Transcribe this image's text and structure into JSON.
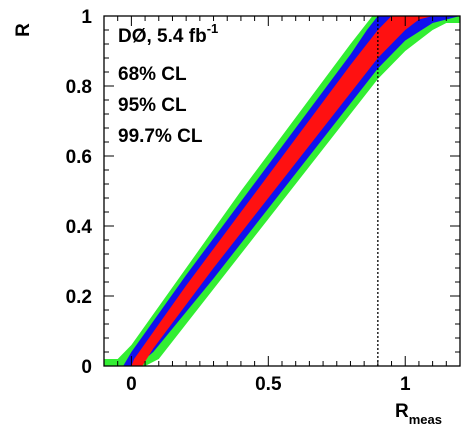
{
  "chart_data": {
    "type": "area",
    "title": "",
    "experiment_label": "DØ, 5.4 fb",
    "experiment_label_superscript": "-1",
    "xlabel_main": "R",
    "xlabel_sub": "meas",
    "ylabel": "R",
    "xlim": [
      -0.1,
      1.2
    ],
    "ylim": [
      0,
      1
    ],
    "x_ticks": [
      {
        "value": 0,
        "label": "0"
      },
      {
        "value": 0.5,
        "label": "0.5"
      },
      {
        "value": 1,
        "label": "1"
      }
    ],
    "y_ticks": [
      {
        "value": 0,
        "label": "0"
      },
      {
        "value": 0.2,
        "label": "0.2"
      },
      {
        "value": 0.4,
        "label": "0.4"
      },
      {
        "value": 0.6,
        "label": "0.6"
      },
      {
        "value": 0.8,
        "label": "0.8"
      },
      {
        "value": 1,
        "label": "1"
      }
    ],
    "measured_value_line": {
      "x": 0.9,
      "style": "dotted"
    },
    "series": [
      {
        "name": "99.7% CL",
        "color": "#33ee33",
        "lower": [
          [
            -0.1,
            0.0
          ],
          [
            -0.02,
            0.0
          ],
          [
            0.05,
            0.0
          ],
          [
            0.1,
            0.02
          ],
          [
            0.3,
            0.22
          ],
          [
            0.5,
            0.42
          ],
          [
            0.7,
            0.62
          ],
          [
            0.9,
            0.82
          ],
          [
            1.0,
            0.9
          ],
          [
            1.1,
            0.96
          ],
          [
            1.15,
            0.98
          ],
          [
            1.2,
            0.98
          ]
        ],
        "upper": [
          [
            -0.1,
            0.02
          ],
          [
            -0.05,
            0.02
          ],
          [
            0.0,
            0.06
          ],
          [
            0.2,
            0.28
          ],
          [
            0.4,
            0.5
          ],
          [
            0.6,
            0.71
          ],
          [
            0.8,
            0.92
          ],
          [
            0.88,
            1.0
          ],
          [
            1.2,
            1.0
          ]
        ]
      },
      {
        "name": "95% CL",
        "color": "#1111ee",
        "lower": [
          [
            -0.1,
            0.0
          ],
          [
            0.02,
            0.0
          ],
          [
            0.08,
            0.04
          ],
          [
            0.3,
            0.25
          ],
          [
            0.5,
            0.45
          ],
          [
            0.7,
            0.65
          ],
          [
            0.9,
            0.85
          ],
          [
            1.0,
            0.93
          ],
          [
            1.1,
            0.98
          ],
          [
            1.2,
            1.0
          ]
        ],
        "upper": [
          [
            -0.1,
            0.0
          ],
          [
            -0.03,
            0.0
          ],
          [
            0.0,
            0.04
          ],
          [
            0.2,
            0.26
          ],
          [
            0.4,
            0.47
          ],
          [
            0.6,
            0.68
          ],
          [
            0.8,
            0.89
          ],
          [
            0.86,
            0.96
          ],
          [
            0.9,
            1.0
          ],
          [
            1.2,
            1.0
          ]
        ]
      },
      {
        "name": "68% CL",
        "color": "#ff1111",
        "lower": [
          [
            0.0,
            0.0
          ],
          [
            0.04,
            0.0
          ],
          [
            0.08,
            0.05
          ],
          [
            0.3,
            0.28
          ],
          [
            0.5,
            0.48
          ],
          [
            0.7,
            0.68
          ],
          [
            0.9,
            0.88
          ],
          [
            1.0,
            0.96
          ],
          [
            1.05,
            0.99
          ],
          [
            1.1,
            1.0
          ],
          [
            1.2,
            1.0
          ]
        ],
        "upper": [
          [
            0.0,
            0.0
          ],
          [
            0.01,
            0.02
          ],
          [
            0.2,
            0.23
          ],
          [
            0.4,
            0.44
          ],
          [
            0.6,
            0.65
          ],
          [
            0.8,
            0.86
          ],
          [
            0.9,
            0.96
          ],
          [
            0.95,
            1.0
          ],
          [
            1.2,
            1.0
          ]
        ]
      }
    ]
  }
}
